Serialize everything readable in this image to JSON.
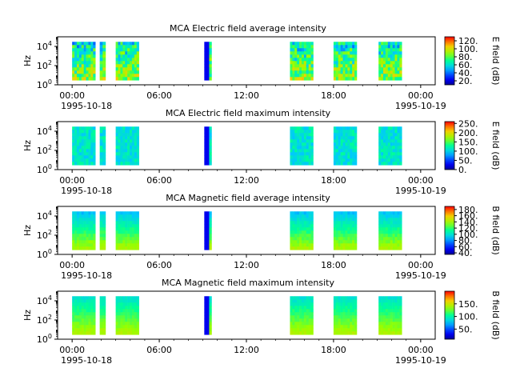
{
  "chart_data": [
    {
      "type": "heatmap",
      "title": "MCA  Electric field average intensity",
      "ylabel": "Hz",
      "yscale": "log",
      "ylim": [
        1,
        100000
      ],
      "ytick_labels": [
        [
          "10",
          "0"
        ],
        [
          "10",
          "2"
        ],
        [
          "10",
          "4"
        ]
      ],
      "xtick_labels": [
        "00:00",
        "06:00",
        "12:00",
        "18:00",
        "00:00"
      ],
      "xdate_labels": [
        "1995-10-18",
        "1995-10-19"
      ],
      "colorbar": {
        "label": "E field (dB)",
        "range": [
          10,
          130
        ],
        "ticks": [
          "20.",
          "40.",
          "60.",
          "80.",
          "100.",
          "120."
        ]
      },
      "colors": {
        "low": "#0000ff",
        "mid": "#00ff80",
        "high": "#ff0000"
      },
      "data_segments_hours": [
        [
          0.0,
          1.6
        ],
        [
          1.9,
          2.3
        ],
        [
          3.0,
          4.6
        ],
        [
          9.1,
          9.6
        ],
        [
          15.0,
          16.6
        ],
        [
          18.0,
          19.6
        ],
        [
          21.1,
          22.7
        ]
      ],
      "typical_level": 70
    },
    {
      "type": "heatmap",
      "title": "MCA  Electric field maximum intensity",
      "ylabel": "Hz",
      "yscale": "log",
      "ylim": [
        1,
        100000
      ],
      "ytick_labels": [
        [
          "10",
          "0"
        ],
        [
          "10",
          "2"
        ],
        [
          "10",
          "4"
        ]
      ],
      "xtick_labels": [
        "00:00",
        "06:00",
        "12:00",
        "18:00",
        "00:00"
      ],
      "xdate_labels": [
        "1995-10-18",
        "1995-10-19"
      ],
      "colorbar": {
        "label": "E field (dB)",
        "range": [
          0,
          260
        ],
        "ticks": [
          "0.",
          "50.",
          "100.",
          "150.",
          "200.",
          "250."
        ]
      },
      "colors": {
        "low": "#0000ff",
        "mid": "#00ff80",
        "high": "#ff0000"
      },
      "data_segments_hours": [
        [
          0.0,
          1.6
        ],
        [
          1.9,
          2.3
        ],
        [
          3.0,
          4.6
        ],
        [
          9.1,
          9.6
        ],
        [
          15.0,
          16.6
        ],
        [
          18.0,
          19.6
        ],
        [
          21.1,
          22.7
        ]
      ],
      "typical_level": 110
    },
    {
      "type": "heatmap",
      "title": "MCA  Magnetic field average intensity",
      "ylabel": "Hz",
      "yscale": "log",
      "ylim": [
        1,
        100000
      ],
      "ytick_labels": [
        [
          "10",
          "0"
        ],
        [
          "10",
          "2"
        ],
        [
          "10",
          "4"
        ]
      ],
      "xtick_labels": [
        "00:00",
        "06:00",
        "12:00",
        "18:00",
        "00:00"
      ],
      "xdate_labels": [
        "1995-10-18",
        "1995-10-19"
      ],
      "colorbar": {
        "label": "B field (dB)",
        "range": [
          35,
          190
        ],
        "ticks": [
          "40.",
          "60.",
          "80.",
          "100.",
          "120.",
          "140.",
          "160.",
          "180."
        ]
      },
      "colors": {
        "low": "#0000ff",
        "mid": "#00ff80",
        "high": "#ff0000"
      },
      "data_segments_hours": [
        [
          0.0,
          1.6
        ],
        [
          1.9,
          2.3
        ],
        [
          3.0,
          4.6
        ],
        [
          9.1,
          9.6
        ],
        [
          15.0,
          16.6
        ],
        [
          18.0,
          19.6
        ],
        [
          21.1,
          22.7
        ]
      ],
      "typical_level": 110
    },
    {
      "type": "heatmap",
      "title": "MCA  Magnetic field maximum intensity",
      "ylabel": "Hz",
      "yscale": "log",
      "ylim": [
        1,
        100000
      ],
      "ytick_labels": [
        [
          "10",
          "0"
        ],
        [
          "10",
          "2"
        ],
        [
          "10",
          "4"
        ]
      ],
      "xtick_labels": [
        "00:00",
        "06:00",
        "12:00",
        "18:00",
        "00:00"
      ],
      "xdate_labels": [
        "1995-10-18",
        "1995-10-19"
      ],
      "colorbar": {
        "label": "B field (dB)",
        "range": [
          10,
          200
        ],
        "ticks": [
          "50.",
          "100.",
          "150."
        ]
      },
      "colors": {
        "low": "#0000ff",
        "mid": "#00ff80",
        "high": "#ff0000"
      },
      "data_segments_hours": [
        [
          0.0,
          1.6
        ],
        [
          1.9,
          2.3
        ],
        [
          3.0,
          4.6
        ],
        [
          9.1,
          9.6
        ],
        [
          15.0,
          16.6
        ],
        [
          18.0,
          19.6
        ],
        [
          21.1,
          22.7
        ]
      ],
      "typical_level": 110
    }
  ]
}
